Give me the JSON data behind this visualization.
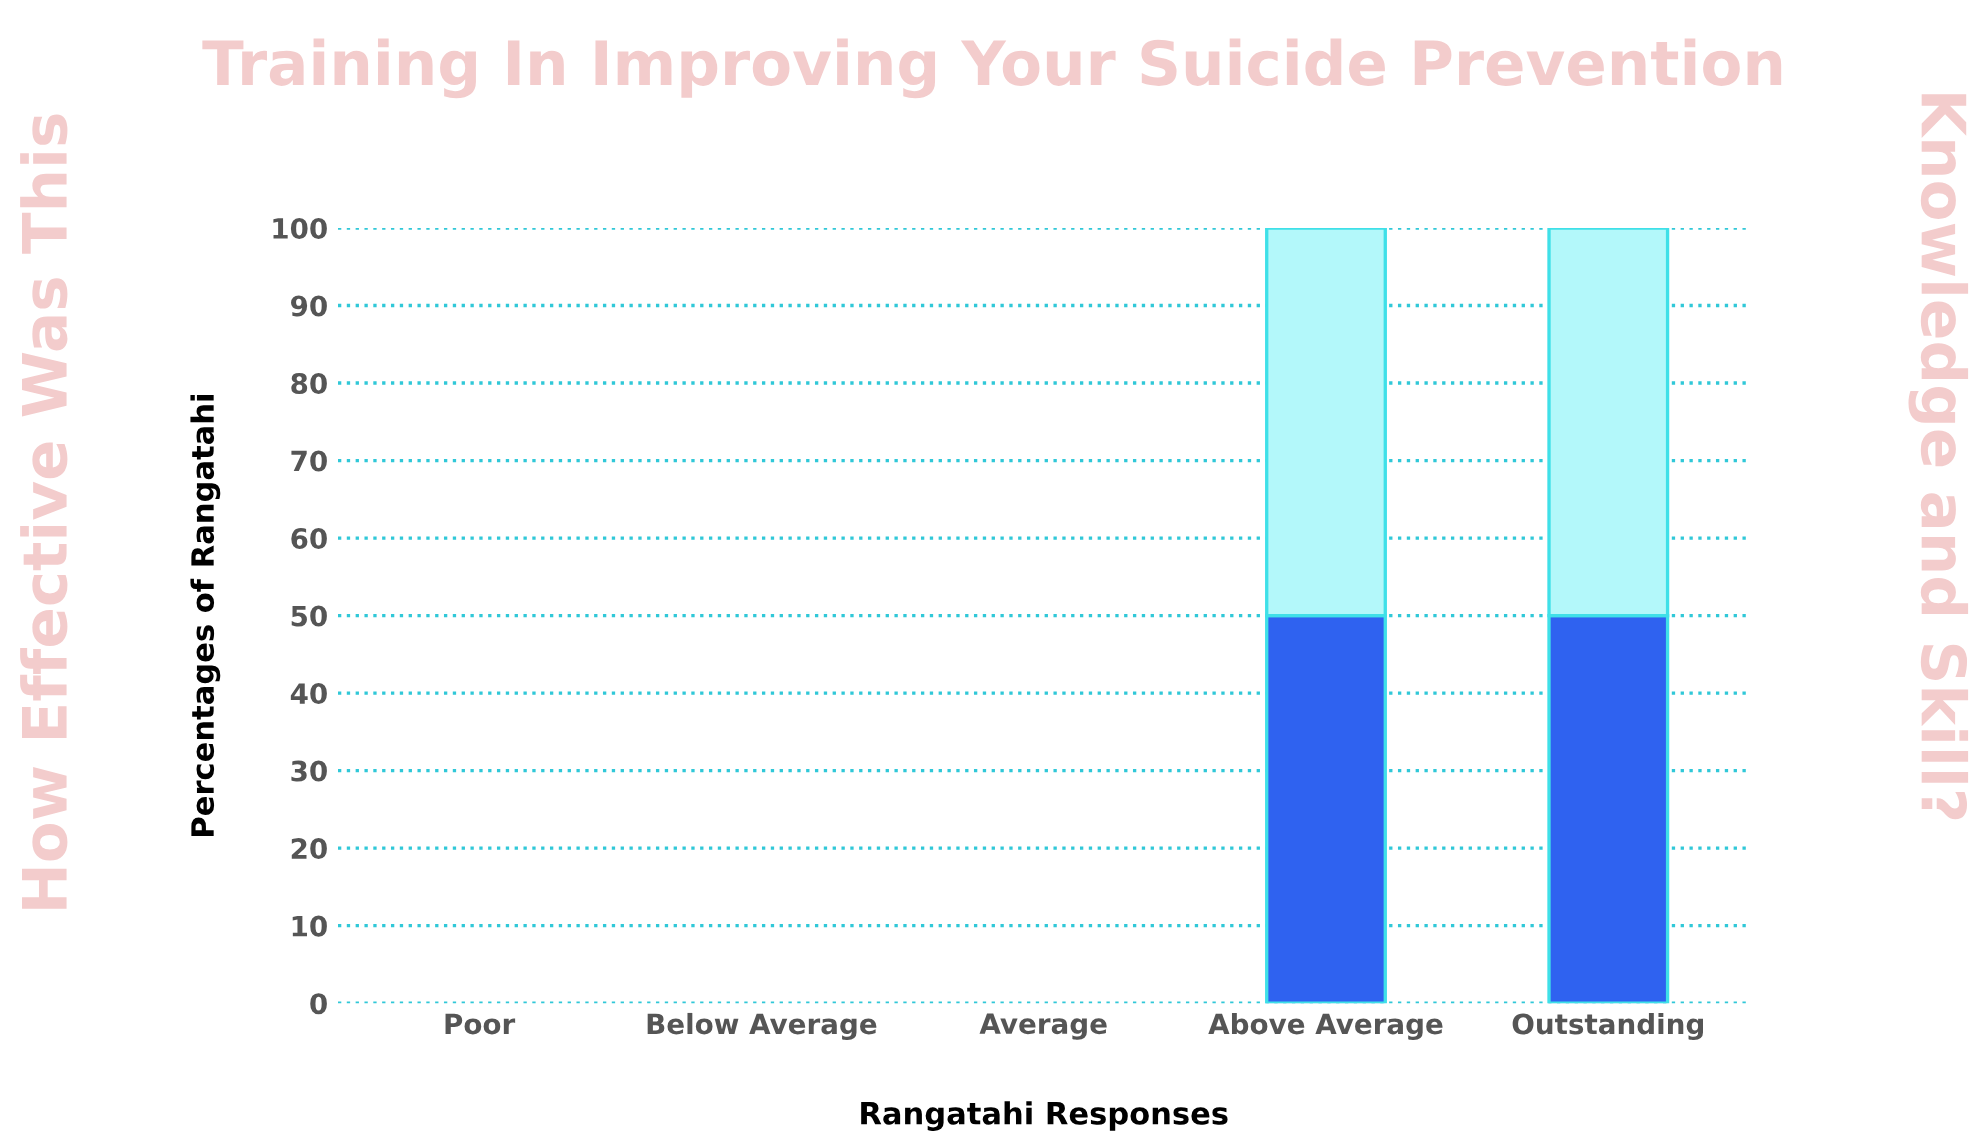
{
  "chart_data": {
    "type": "bar",
    "stacked": true,
    "annotations": [
      "How Effective Was This",
      "Training In Improving Your Suicide Prevention",
      "Knowledge and Skill?"
    ],
    "xlabel": "Rangatahi Responses",
    "ylabel": "Percentages of Rangatahi",
    "categories": [
      "Poor",
      "Below Average",
      "Average",
      "Above Average",
      "Outstanding"
    ],
    "series": [
      {
        "color": "#2f62f0",
        "values": [
          0,
          0,
          0,
          50,
          50
        ]
      },
      {
        "color": "#b3f8fa",
        "values": [
          0,
          0,
          0,
          50,
          50
        ]
      }
    ],
    "ylim": [
      0,
      100
    ],
    "yticks": [
      0,
      10,
      20,
      30,
      40,
      50,
      60,
      70,
      80,
      90,
      100
    ],
    "grid": "y",
    "legend": false
  }
}
